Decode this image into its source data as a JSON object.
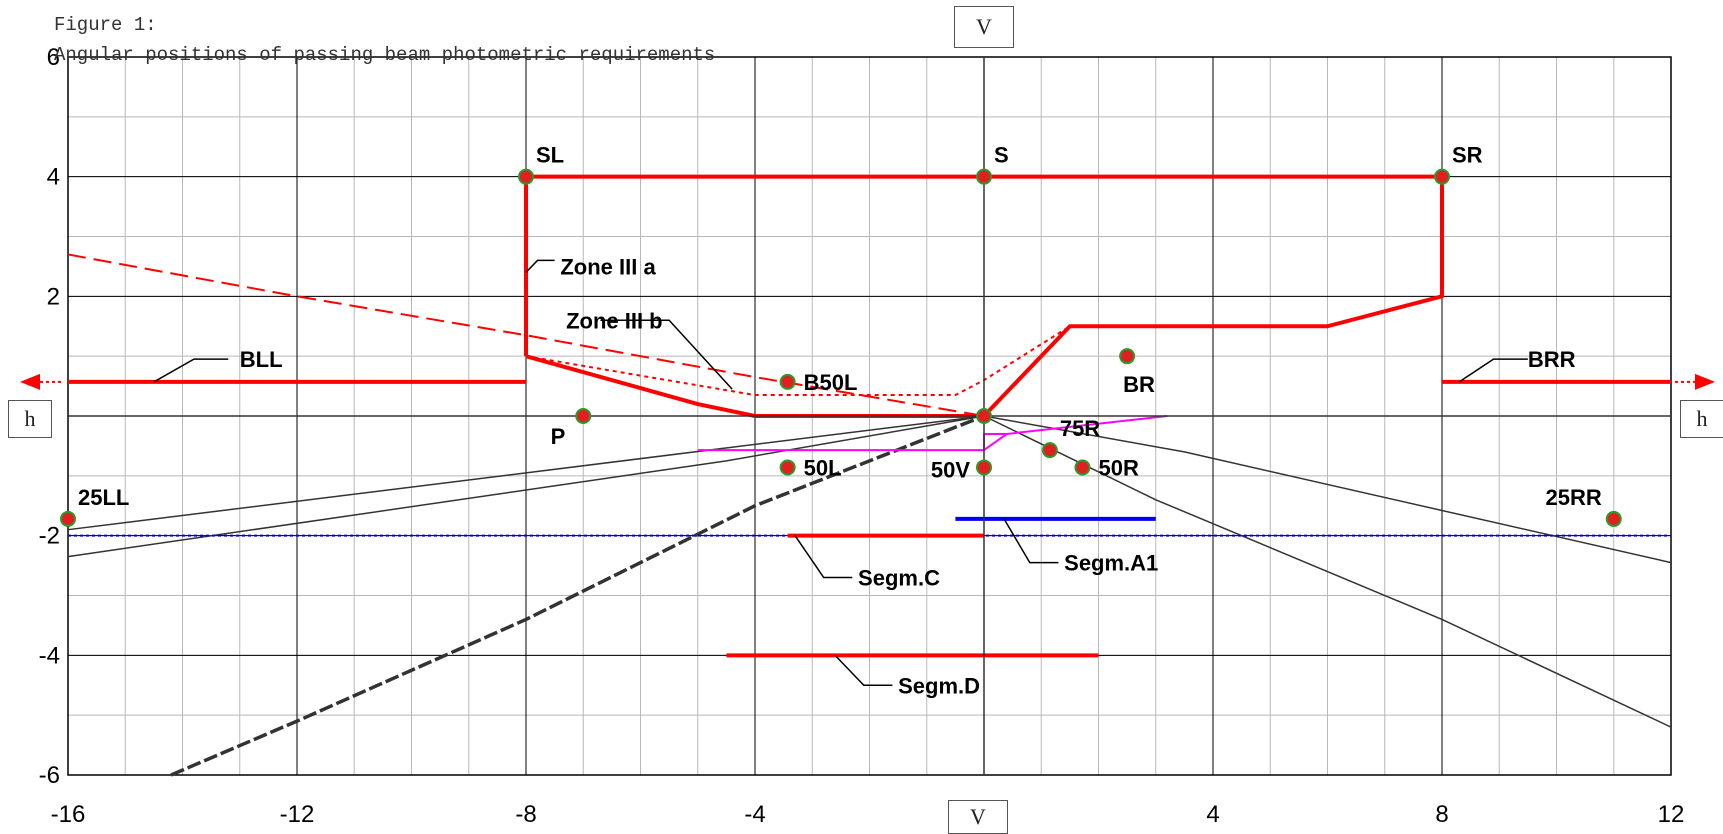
{
  "figure": {
    "caption_line1": "Figure 1:",
    "caption_line2": "Angular positions of passing beam photometric requirements"
  },
  "reference_labels": {
    "v_top": "V",
    "v_bottom": "V",
    "h_left": "h",
    "h_right": "h"
  },
  "chart_data": {
    "type": "line",
    "title": "Angular positions of passing beam photometric requirements",
    "xlim": [
      -16,
      12
    ],
    "ylim": [
      -6,
      6
    ],
    "x_ticks": [
      -16,
      -12,
      -8,
      -4,
      4,
      8,
      12
    ],
    "y_ticks": [
      6,
      4,
      2,
      -2,
      -4,
      -6
    ],
    "minor_grid": 1,
    "major_grid_x": 4,
    "major_grid_y": 2,
    "grid": true,
    "colors": {
      "red": "#ff0000",
      "blue": "#0000ee",
      "magenta": "#ff00ff",
      "gray": "#333333",
      "point_fill": "#e02020",
      "point_ring": "#2a9a2a"
    },
    "points": [
      {
        "name": "SL",
        "x": -8,
        "y": 4,
        "label_pos": "above-right"
      },
      {
        "name": "S",
        "x": 0,
        "y": 4,
        "label_pos": "above-right"
      },
      {
        "name": "SR",
        "x": 8,
        "y": 4,
        "label_pos": "above-right"
      },
      {
        "name": "B50L",
        "x": -3.43,
        "y": 0.57,
        "label_pos": "right"
      },
      {
        "name": "BR",
        "x": 2.5,
        "y": 1,
        "label_pos": "below"
      },
      {
        "name": "P",
        "x": -7,
        "y": 0,
        "label_pos": "below-left"
      },
      {
        "name": "50L",
        "x": -3.43,
        "y": -0.86,
        "label_pos": "right"
      },
      {
        "name": "50V",
        "x": 0,
        "y": -0.86,
        "label_pos": "left"
      },
      {
        "name": "75R",
        "x": 1.15,
        "y": -0.57,
        "label_pos": "above-right"
      },
      {
        "name": "50R",
        "x": 1.72,
        "y": -0.86,
        "label_pos": "right"
      },
      {
        "name": "25LL",
        "x": -16,
        "y": -1.72,
        "label_pos": "above-right"
      },
      {
        "name": "25RR",
        "x": 11,
        "y": -1.72,
        "label_pos": "above-left"
      },
      {
        "name": "",
        "x": 0,
        "y": 0,
        "label_pos": "none"
      }
    ],
    "series": [
      {
        "kind": "zone",
        "color": "red",
        "width": 4,
        "dash": "",
        "points": [
          [
            -8,
            1
          ],
          [
            -5,
            0.2
          ],
          [
            -4,
            0
          ],
          [
            0,
            0
          ],
          [
            1.5,
            1.5
          ],
          [
            6,
            1.5
          ],
          [
            8,
            2
          ],
          [
            8,
            4
          ],
          [
            -8,
            4
          ],
          [
            -8,
            1
          ]
        ]
      },
      {
        "kind": "bll",
        "color": "red",
        "width": 4,
        "dash": "",
        "points": [
          [
            -16,
            0.57
          ],
          [
            -8,
            0.57
          ]
        ]
      },
      {
        "kind": "brr",
        "color": "red",
        "width": 4,
        "dash": "",
        "points": [
          [
            8,
            0.57
          ],
          [
            12,
            0.57
          ]
        ]
      },
      {
        "kind": "zone-iiib",
        "color": "red",
        "width": 2,
        "dash": "4,4",
        "points": [
          [
            -8,
            1
          ],
          [
            -4,
            0.35
          ],
          [
            -0.5,
            0.35
          ],
          [
            0,
            0.6
          ],
          [
            1.5,
            1.5
          ]
        ]
      },
      {
        "kind": "red-dashed",
        "color": "red",
        "width": 2,
        "dash": "18,8",
        "points": [
          [
            -16,
            2.7
          ],
          [
            -12,
            2
          ],
          [
            -8,
            1.35
          ],
          [
            -4,
            0.65
          ],
          [
            0,
            0
          ]
        ]
      },
      {
        "kind": "gray-1",
        "color": "gray",
        "width": 1.5,
        "dash": "",
        "points": [
          [
            -16,
            -1.9
          ],
          [
            0,
            0
          ]
        ]
      },
      {
        "kind": "gray-2",
        "color": "gray",
        "width": 1.5,
        "dash": "",
        "points": [
          [
            -16,
            -2.35
          ],
          [
            -4.5,
            -0.75
          ],
          [
            0,
            0
          ]
        ]
      },
      {
        "kind": "gray-3",
        "color": "gray",
        "width": 1.5,
        "dash": "",
        "points": [
          [
            0,
            0
          ],
          [
            3.5,
            -0.6
          ],
          [
            12,
            -2.45
          ]
        ]
      },
      {
        "kind": "gray-4",
        "color": "gray",
        "width": 1.5,
        "dash": "",
        "points": [
          [
            0,
            0
          ],
          [
            3,
            -1.4
          ],
          [
            8,
            -3.4
          ],
          [
            12,
            -5.2
          ]
        ]
      },
      {
        "kind": "gray-dashed",
        "color": "gray",
        "width": 3.5,
        "dash": "14,4",
        "points": [
          [
            -14.2,
            -6
          ],
          [
            -12,
            -5.1
          ],
          [
            -8,
            -3.4
          ],
          [
            -4,
            -1.5
          ],
          [
            0,
            0
          ]
        ]
      },
      {
        "kind": "magenta",
        "color": "magenta",
        "width": 2,
        "dash": "",
        "points": [
          [
            -5,
            -0.57
          ],
          [
            0,
            -0.57
          ],
          [
            0.4,
            -0.3
          ],
          [
            3.2,
            0
          ]
        ]
      },
      {
        "kind": "magenta-stub",
        "color": "magenta",
        "width": 2,
        "dash": "",
        "points": [
          [
            0,
            -0.57
          ],
          [
            0,
            -0.3
          ],
          [
            0.4,
            -0.3
          ]
        ]
      },
      {
        "kind": "blue-dotted",
        "color": "blue",
        "width": 2,
        "dash": "3,3",
        "points": [
          [
            -16,
            -2
          ],
          [
            12,
            -2
          ]
        ]
      },
      {
        "kind": "segm-a1",
        "color": "blue",
        "width": 4,
        "dash": "",
        "points": [
          [
            -0.5,
            -1.72
          ],
          [
            3,
            -1.72
          ]
        ]
      },
      {
        "kind": "segm-c",
        "color": "red",
        "width": 4,
        "dash": "",
        "points": [
          [
            -3.43,
            -2
          ],
          [
            0,
            -2
          ]
        ]
      },
      {
        "kind": "segm-d",
        "color": "red",
        "width": 4,
        "dash": "",
        "points": [
          [
            -4.5,
            -4
          ],
          [
            2,
            -4
          ]
        ]
      },
      {
        "kind": "h-axis",
        "color": "gray",
        "width": 1.5,
        "dash": "",
        "points": [
          [
            -16,
            0
          ],
          [
            12,
            0
          ]
        ]
      },
      {
        "kind": "v-axis",
        "color": "gray",
        "width": 1.5,
        "dash": "",
        "points": [
          [
            0,
            -6
          ],
          [
            0,
            6
          ]
        ]
      }
    ],
    "annotations": [
      {
        "text": "Zone III a",
        "x": -7.4,
        "y": 2.5,
        "leader": [
          [
            -8,
            2.4
          ],
          [
            -7.8,
            2.6
          ],
          [
            -7.5,
            2.6
          ]
        ]
      },
      {
        "text": "Zone III b",
        "x": -7.3,
        "y": 1.6,
        "leader": [
          [
            -4.4,
            0.45
          ],
          [
            -5.5,
            1.6
          ],
          [
            -6.7,
            1.6
          ]
        ]
      },
      {
        "text": "BLL",
        "x": -13,
        "y": 0.95,
        "leader": [
          [
            -14.5,
            0.57
          ],
          [
            -13.8,
            0.95
          ],
          [
            -13.2,
            0.95
          ]
        ]
      },
      {
        "text": "BRR",
        "x": 9.5,
        "y": 0.95,
        "leader": [
          [
            8.3,
            0.57
          ],
          [
            8.9,
            0.95
          ],
          [
            9.5,
            0.95
          ]
        ]
      },
      {
        "text": "Segm.C",
        "x": -2.2,
        "y": -2.7,
        "leader": [
          [
            -3.3,
            -2
          ],
          [
            -2.8,
            -2.7
          ],
          [
            -2.3,
            -2.7
          ]
        ]
      },
      {
        "text": "Segm.A1",
        "x": 1.4,
        "y": -2.45,
        "leader": [
          [
            0.35,
            -1.72
          ],
          [
            0.8,
            -2.45
          ],
          [
            1.3,
            -2.45
          ]
        ]
      },
      {
        "text": "Segm.D",
        "x": -1.5,
        "y": -4.5,
        "leader": [
          [
            -2.6,
            -4
          ],
          [
            -2.1,
            -4.5
          ],
          [
            -1.6,
            -4.5
          ]
        ]
      }
    ]
  }
}
